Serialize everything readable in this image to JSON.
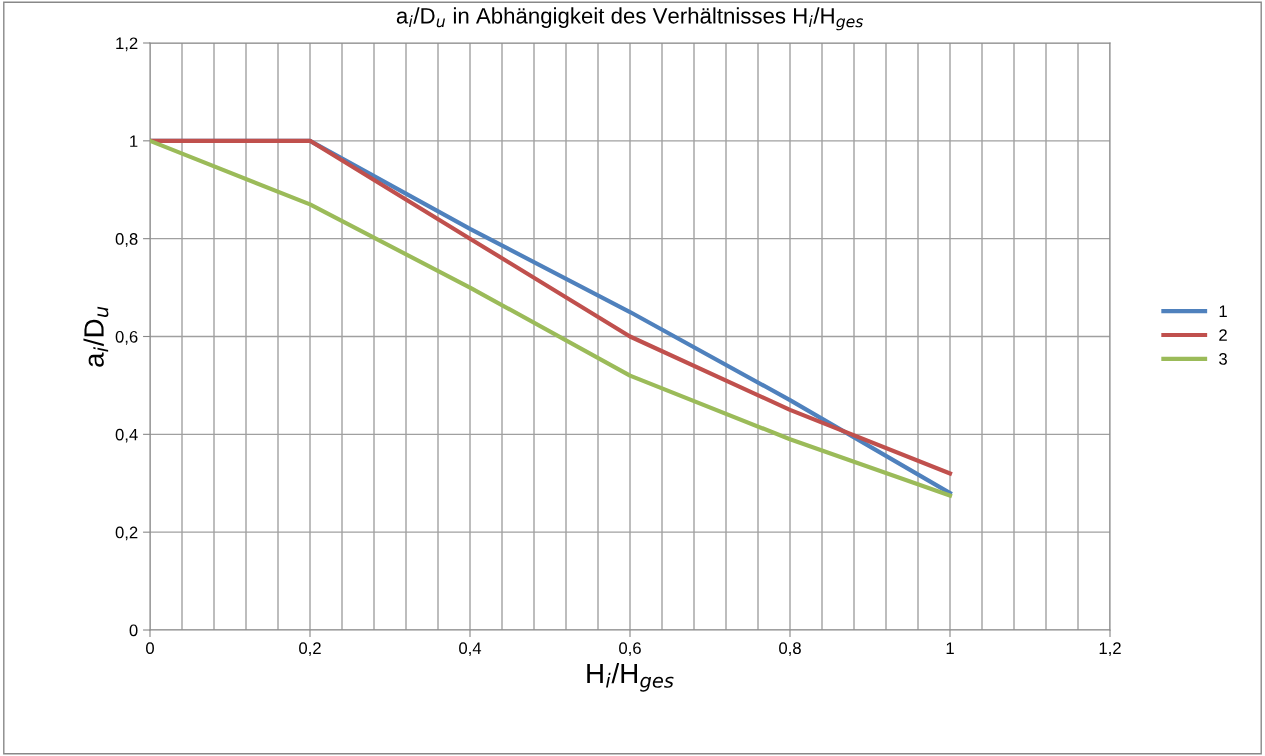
{
  "chart_data": {
    "type": "line",
    "title": "a$_{i}$/D$_{u}$ in Abhängigkeit des Verhältnisses H$_{i}$/H$_{ges}$",
    "xlabel": "H$_{i}$/H$_{ges}$",
    "ylabel": "a$_{i}$/D$_{u}$",
    "x": [
      0,
      0.2,
      0.4,
      0.6,
      0.8,
      1
    ],
    "series": [
      {
        "name": "1",
        "color": "#4f81bd",
        "values": [
          1,
          1,
          0.82,
          0.65,
          0.47,
          0.28
        ]
      },
      {
        "name": "2",
        "color": "#c0504d",
        "values": [
          1,
          1,
          0.8,
          0.6,
          0.45,
          0.32
        ]
      },
      {
        "name": "3",
        "color": "#9bbb59",
        "values": [
          1,
          0.87,
          0.7,
          0.52,
          0.39,
          0.275
        ]
      }
    ],
    "xlim": [
      0,
      1.2
    ],
    "ylim": [
      0,
      1.2
    ],
    "xticks": [
      0,
      {
        "value": 0.2,
        "label": "0,2"
      },
      {
        "value": 0.4,
        "label": "0,4"
      },
      {
        "value": 0.6,
        "label": "0,6"
      },
      {
        "value": 0.8,
        "label": "0,8"
      },
      1,
      {
        "value": 1.2,
        "label": "1,2"
      }
    ],
    "yticks": [
      0,
      {
        "value": 0.2,
        "label": "0,2"
      },
      {
        "value": 0.4,
        "label": "0,4"
      },
      {
        "value": 0.6,
        "label": "0,6"
      },
      {
        "value": 0.8,
        "label": "0,8"
      },
      1,
      {
        "value": 1.2,
        "label": "1,2"
      }
    ],
    "grid": true,
    "legend": "right",
    "marker": "none",
    "line_style": "solid"
  }
}
